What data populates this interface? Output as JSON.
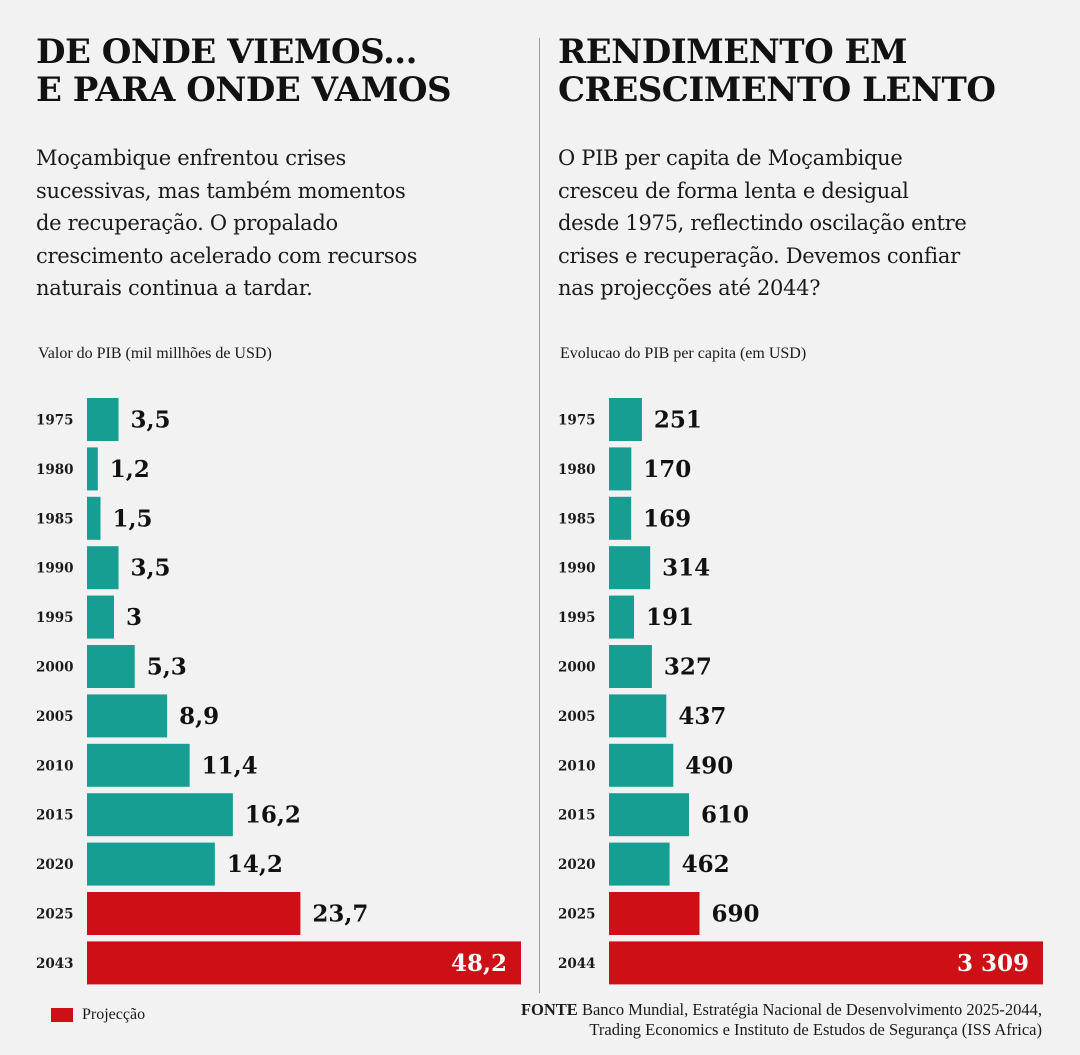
{
  "colors": {
    "historical": "#169e93",
    "projection": "#cc1016"
  },
  "legend": {
    "projection_label": "Projecção"
  },
  "source": {
    "prefix": "FONTE",
    "line1": "Banco Mundial, Estratégia Nacional de Desenvolvimento 2025-2044,",
    "line2": "Trading Economics e Instituto de Estudos de Segurança (ISS Africa)"
  },
  "left": {
    "title_lines": [
      "DE ONDE VIEMOS...",
      "E PARA ONDE VAMOS"
    ],
    "description_lines": [
      "Moçambique enfrentou crises",
      "sucessivas, mas também momentos",
      "de recuperação. O propalado",
      "crescimento acelerado com recursos",
      "naturais continua a tardar."
    ]
  },
  "right": {
    "title_lines": [
      "RENDIMENTO EM",
      "CRESCIMENTO LENTO"
    ],
    "description_lines": [
      "O PIB per capita de Moçambique",
      "cresceu de forma lenta e desigual",
      "desde 1975, reflectindo oscilação entre",
      "crises e recuperação. Devemos confiar",
      "nas projecções até 2044?"
    ]
  },
  "chart_data": [
    {
      "type": "bar",
      "orientation": "horizontal",
      "title": "DE ONDE VIEMOS... E PARA ONDE VAMOS",
      "ylabel": "Valor do PIB (mil millhões de USD)",
      "categories": [
        "1975",
        "1980",
        "1985",
        "1990",
        "1995",
        "2000",
        "2005",
        "2010",
        "2015",
        "2020",
        "2025",
        "2043"
      ],
      "values": [
        3.5,
        1.2,
        1.5,
        3.5,
        3,
        5.3,
        8.9,
        11.4,
        16.2,
        14.2,
        23.7,
        48.2
      ],
      "value_labels": [
        "3,5",
        "1,2",
        "1,5",
        "3,5",
        "3",
        "5,3",
        "8,9",
        "11,4",
        "16,2",
        "14,2",
        "23,7",
        "48,2"
      ],
      "projection": [
        false,
        false,
        false,
        false,
        false,
        false,
        false,
        false,
        false,
        false,
        true,
        true
      ],
      "xlim": [
        0,
        48.2
      ]
    },
    {
      "type": "bar",
      "orientation": "horizontal",
      "title": "RENDIMENTO EM CRESCIMENTO LENTO",
      "ylabel": "Evolucao do PIB per capita (em USD)",
      "categories": [
        "1975",
        "1980",
        "1985",
        "1990",
        "1995",
        "2000",
        "2005",
        "2010",
        "2015",
        "2020",
        "2025",
        "2044"
      ],
      "values": [
        251,
        170,
        169,
        314,
        191,
        327,
        437,
        490,
        610,
        462,
        690,
        3309
      ],
      "value_labels": [
        "251",
        "170",
        "169",
        "314",
        "191",
        "327",
        "437",
        "490",
        "610",
        "462",
        "690",
        "3 309"
      ],
      "projection": [
        false,
        false,
        false,
        false,
        false,
        false,
        false,
        false,
        false,
        false,
        true,
        true
      ],
      "xlim": [
        0,
        3309
      ]
    }
  ]
}
